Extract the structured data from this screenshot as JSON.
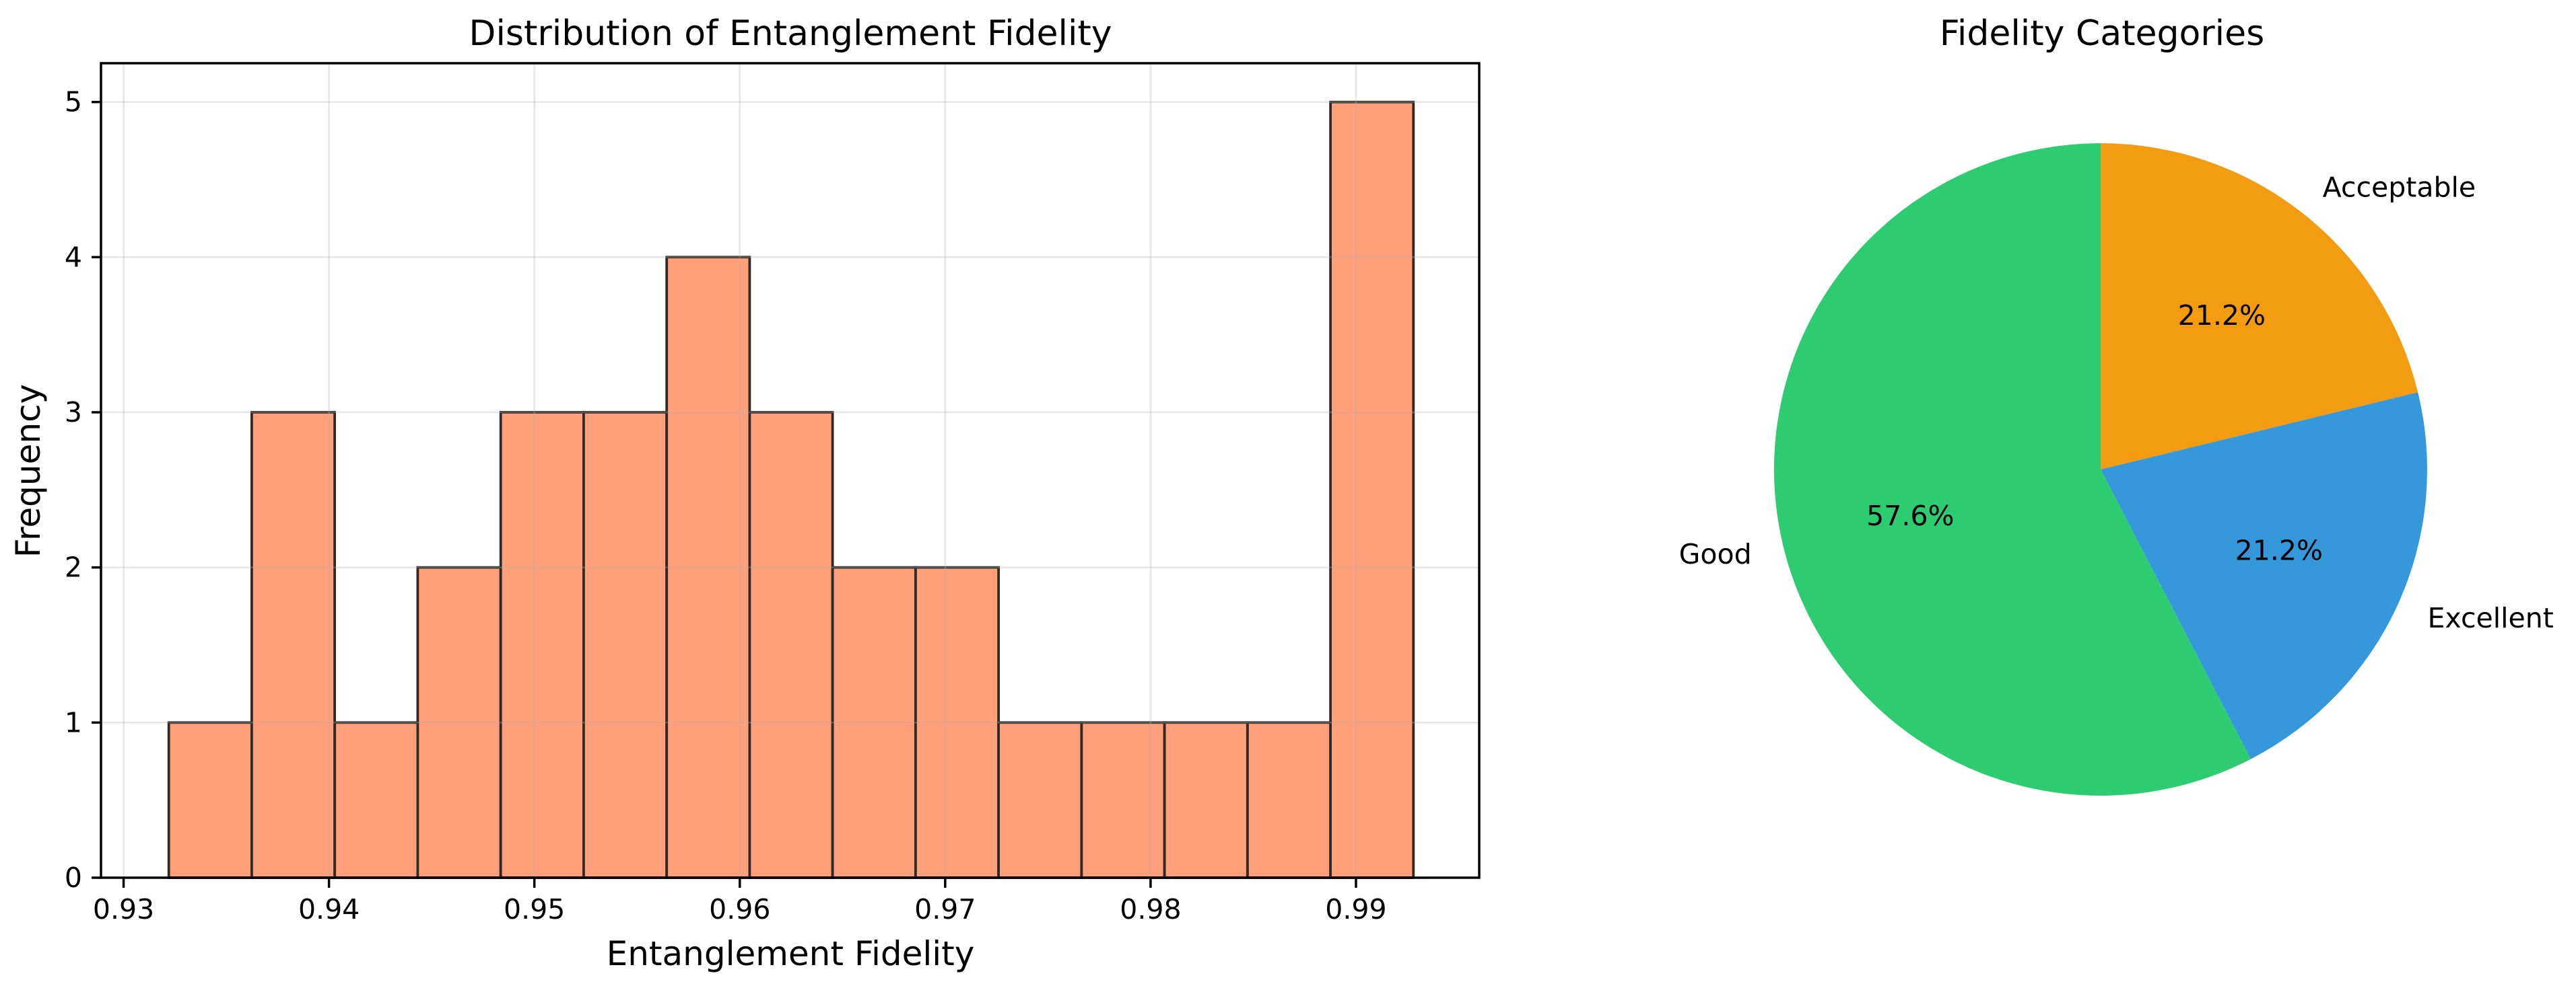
{
  "chart_data": [
    {
      "type": "histogram",
      "title": "Distribution of Entanglement Fidelity",
      "xlabel": "Entanglement Fidelity",
      "ylabel": "Frequency",
      "bin_start": 0.9322,
      "bin_width": 0.00404,
      "counts": [
        1,
        3,
        1,
        2,
        3,
        3,
        4,
        3,
        2,
        2,
        1,
        1,
        1,
        1,
        5
      ],
      "x_ticks": [
        0.93,
        0.94,
        0.95,
        0.96,
        0.97,
        0.98,
        0.99
      ],
      "x_tick_labels": [
        "0.93",
        "0.94",
        "0.95",
        "0.96",
        "0.97",
        "0.98",
        "0.99"
      ],
      "y_ticks": [
        0,
        1,
        2,
        3,
        4,
        5
      ],
      "y_tick_labels": [
        "0",
        "1",
        "2",
        "3",
        "4",
        "5"
      ],
      "xlim": [
        0.9289,
        0.996
      ],
      "ylim": [
        0,
        5.25
      ],
      "grid": true,
      "grid_color": "#b0b0b0",
      "grid_alpha": 0.3,
      "bar_color": "#ffa07a",
      "bar_edge_color": "#2f2a26"
    },
    {
      "type": "pie",
      "title": "Fidelity Categories",
      "start_angle": 90,
      "clockwise": true,
      "label_distance": 1.1,
      "pct_distance": 0.6,
      "legend_position": "none",
      "slices": [
        {
          "label": "Acceptable",
          "value": 21.2,
          "pct_label": "21.2%",
          "color": "#f39c12"
        },
        {
          "label": "Excellent",
          "value": 21.2,
          "pct_label": "21.2%",
          "color": "#3498db"
        },
        {
          "label": "Good",
          "value": 57.6,
          "pct_label": "57.6%",
          "color": "#2ecc71"
        }
      ]
    }
  ]
}
